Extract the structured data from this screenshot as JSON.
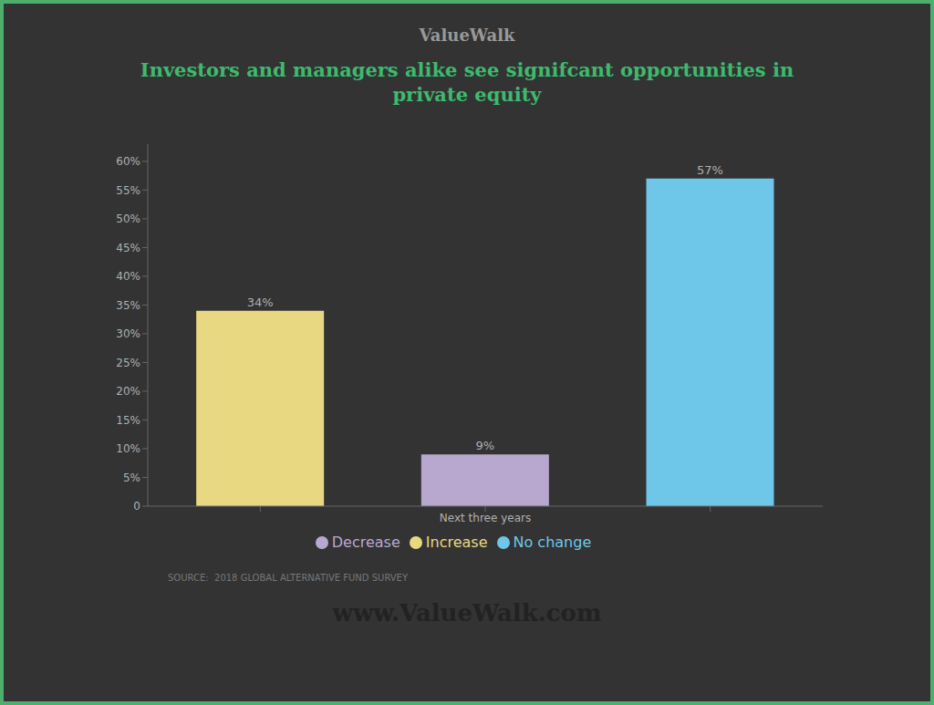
{
  "chart_data": {
    "type": "bar",
    "title": "Investors and managers alike see signifcant opportunities in\nprivate equity",
    "annotations": [
      "ValueWalk",
      "SOURCE:  2018 GLOBAL ALTERNATIVE FUND SURVEY",
      "www.ValueWalk.com"
    ],
    "categories": [
      null,
      "Next three years",
      null
    ],
    "series": [
      {
        "name": "Increase",
        "color": "#e8d882",
        "values": [
          34,
          null,
          null
        ],
        "value_labels": [
          "34%",
          null,
          null
        ]
      },
      {
        "name": "Decrease",
        "color": "#b8a8d0",
        "values": [
          null,
          9,
          null
        ],
        "value_labels": [
          null,
          "9%",
          null
        ]
      },
      {
        "name": "No change",
        "color": "#6ec6e8",
        "values": [
          null,
          null,
          57
        ],
        "value_labels": [
          null,
          null,
          "57%"
        ]
      }
    ],
    "ylim": [
      0,
      63
    ],
    "yticks": [
      0,
      {
        "value": 5,
        "label": "5%"
      },
      {
        "value": 10,
        "label": "10%"
      },
      {
        "value": 15,
        "label": "15%"
      },
      {
        "value": 20,
        "label": "20%"
      },
      {
        "value": 25,
        "label": "25%"
      },
      {
        "value": 30,
        "label": "30%"
      },
      {
        "value": 35,
        "label": "35%"
      },
      {
        "value": 40,
        "label": "40%"
      },
      {
        "value": 45,
        "label": "45%"
      },
      {
        "value": 50,
        "label": "50%"
      },
      {
        "value": 55,
        "label": "55%"
      },
      {
        "value": 60,
        "label": "60%"
      }
    ],
    "grid": false,
    "legend": "bottom",
    "data_labels": true
  }
}
